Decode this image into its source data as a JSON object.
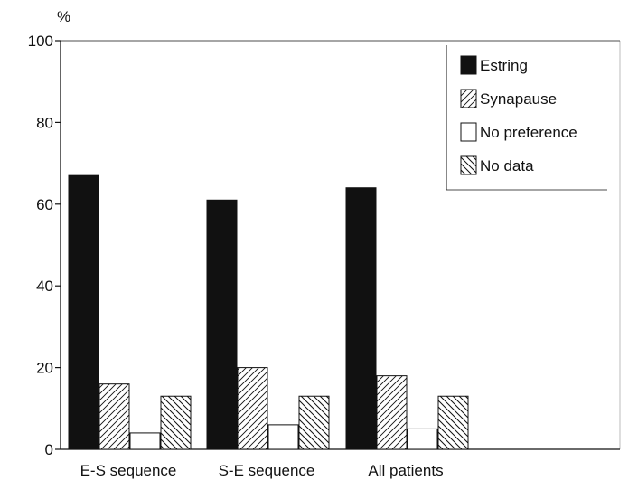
{
  "chart_data": {
    "type": "bar",
    "title": "",
    "xlabel": "",
    "ylabel": "%",
    "ylim": [
      0,
      100
    ],
    "yticks": [
      0,
      20,
      40,
      60,
      80,
      100
    ],
    "categories": [
      "E-S sequence",
      "S-E sequence",
      "All patients"
    ],
    "series": [
      {
        "name": "Estring",
        "pattern": "solid",
        "values": [
          67,
          61,
          64
        ]
      },
      {
        "name": "Synapause",
        "pattern": "hatch-forward",
        "values": [
          16,
          20,
          18
        ]
      },
      {
        "name": "No preference",
        "pattern": "empty",
        "values": [
          4,
          6,
          5
        ]
      },
      {
        "name": "No data",
        "pattern": "hatch-back",
        "values": [
          13,
          13,
          13
        ]
      }
    ],
    "legend_position": "top-right",
    "grid": false
  },
  "colors": {
    "ink": "#111111",
    "background": "#ffffff"
  }
}
